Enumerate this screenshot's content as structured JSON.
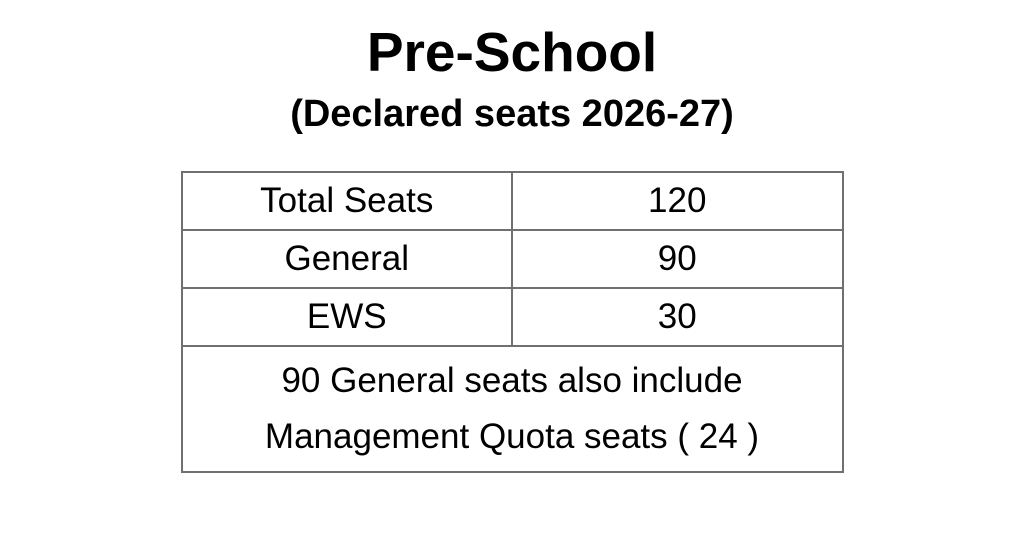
{
  "title": "Pre-School",
  "subtitle": "(Declared seats 2026-27)",
  "table": {
    "rows": [
      {
        "label": "Total Seats",
        "value": "120"
      },
      {
        "label": "General",
        "value": "90"
      },
      {
        "label": "EWS",
        "value": "30"
      }
    ],
    "note_line1": "90 General seats also include",
    "note_line2": "Management Quota seats ( 24 )"
  },
  "colors": {
    "text": "#000000",
    "border": "#707070",
    "background": "#ffffff"
  }
}
